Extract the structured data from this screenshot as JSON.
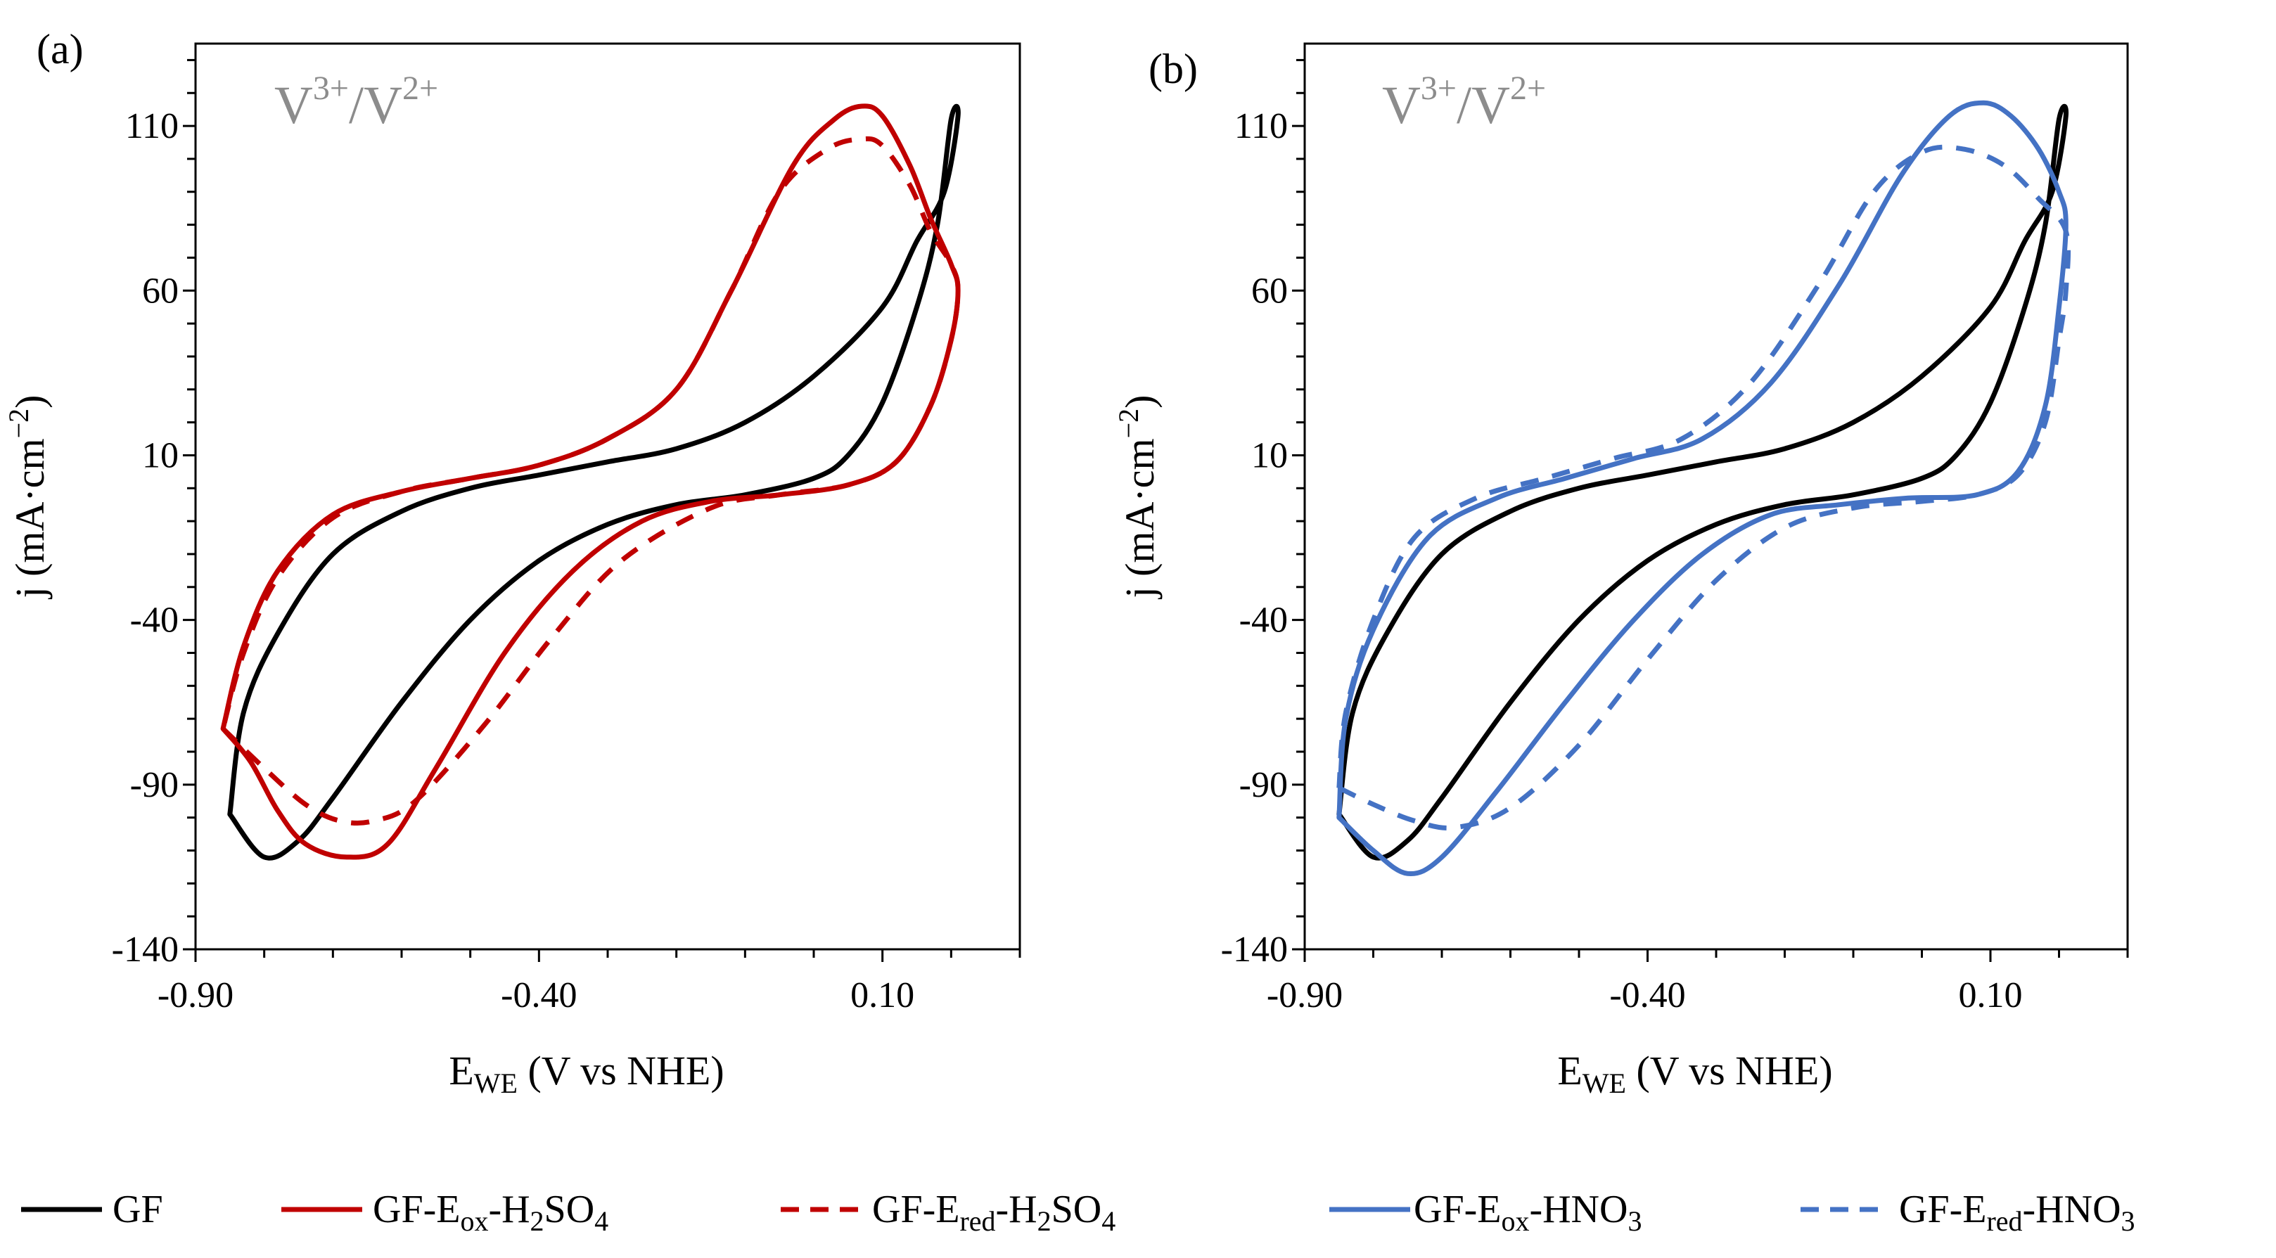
{
  "redox_label": {
    "v1": "V",
    "sup1": "3+",
    "slash": "/",
    "v2": "V",
    "sup2": "2+"
  },
  "x_axis": {
    "title_main": "E",
    "title_sub": "WE",
    "title_rest": " (V vs NHE)"
  },
  "y_axis": {
    "title_main": "j (mA·cm",
    "title_sup": "−2",
    "title_end": ")"
  },
  "legend": [
    {
      "id": "gf",
      "parts": [
        {
          "t": "GF"
        }
      ],
      "color": "#000000",
      "dash": false
    },
    {
      "id": "ox-h2so4",
      "parts": [
        {
          "t": "GF-E"
        },
        {
          "t": "ox",
          "sub": true
        },
        {
          "t": "-H"
        },
        {
          "t": "2",
          "sub": true
        },
        {
          "t": "SO"
        },
        {
          "t": "4",
          "sub": true
        }
      ],
      "color": "#c00000",
      "dash": false
    },
    {
      "id": "red-h2so4",
      "parts": [
        {
          "t": "GF-E"
        },
        {
          "t": "red",
          "sub": true
        },
        {
          "t": "-H"
        },
        {
          "t": "2",
          "sub": true
        },
        {
          "t": "SO"
        },
        {
          "t": "4",
          "sub": true
        }
      ],
      "color": "#c00000",
      "dash": true
    },
    {
      "id": "ox-hno3",
      "parts": [
        {
          "t": "GF-E"
        },
        {
          "t": "ox",
          "sub": true
        },
        {
          "t": "-HNO"
        },
        {
          "t": "3",
          "sub": true
        }
      ],
      "color": "#4472c4",
      "dash": false
    },
    {
      "id": "red-hno3",
      "parts": [
        {
          "t": "GF-E"
        },
        {
          "t": "red",
          "sub": true
        },
        {
          "t": "-HNO"
        },
        {
          "t": "3",
          "sub": true
        }
      ],
      "color": "#4472c4",
      "dash": true
    }
  ],
  "chart_data": [
    {
      "type": "line",
      "panel": "(a)",
      "xlabel": "EWE (V vs NHE)",
      "ylabel": "j (mA·cm−2)",
      "xlim": [
        -0.9,
        0.3
      ],
      "ylim": [
        -140,
        135
      ],
      "x_ticks": [
        -0.9,
        -0.4,
        0.1
      ],
      "x_tick_labels": [
        "-0.90",
        "-0.40",
        "0.10"
      ],
      "y_ticks": [
        110,
        60,
        10,
        -40,
        -90,
        -140
      ],
      "y_tick_labels": [
        "110",
        "60",
        "10",
        "-40",
        "-90",
        "-140"
      ],
      "series": [
        {
          "name": "GF",
          "color": "#000000",
          "dash": false,
          "points": [
            [
              -0.85,
              -99
            ],
            [
              -0.8,
              -112
            ],
            [
              -0.75,
              -107
            ],
            [
              -0.7,
              -94
            ],
            [
              -0.6,
              -65
            ],
            [
              -0.5,
              -40
            ],
            [
              -0.4,
              -22
            ],
            [
              -0.3,
              -11
            ],
            [
              -0.2,
              -5
            ],
            [
              -0.1,
              -2
            ],
            [
              0,
              3
            ],
            [
              0.05,
              10
            ],
            [
              0.1,
              26
            ],
            [
              0.15,
              55
            ],
            [
              0.18,
              80
            ],
            [
              0.2,
              112
            ],
            [
              0.21,
              113
            ],
            [
              0.19,
              90
            ],
            [
              0.15,
              75
            ],
            [
              0.1,
              55
            ],
            [
              0,
              34
            ],
            [
              -0.1,
              20
            ],
            [
              -0.2,
              12
            ],
            [
              -0.3,
              8
            ],
            [
              -0.4,
              4
            ],
            [
              -0.5,
              0
            ],
            [
              -0.6,
              -7
            ],
            [
              -0.7,
              -20
            ],
            [
              -0.78,
              -44
            ],
            [
              -0.83,
              -68
            ],
            [
              -0.85,
              -99
            ]
          ]
        },
        {
          "name": "GF-Eox-H2SO4",
          "color": "#c00000",
          "dash": false,
          "points": [
            [
              -0.86,
              -73
            ],
            [
              -0.82,
              -83
            ],
            [
              -0.78,
              -98
            ],
            [
              -0.74,
              -108
            ],
            [
              -0.68,
              -112
            ],
            [
              -0.62,
              -108
            ],
            [
              -0.55,
              -85
            ],
            [
              -0.45,
              -50
            ],
            [
              -0.35,
              -25
            ],
            [
              -0.25,
              -10
            ],
            [
              -0.15,
              -4
            ],
            [
              -0.05,
              -2
            ],
            [
              0.05,
              1
            ],
            [
              0.12,
              8
            ],
            [
              0.17,
              25
            ],
            [
              0.2,
              45
            ],
            [
              0.21,
              60
            ],
            [
              0.2,
              68
            ],
            [
              0.17,
              82
            ],
            [
              0.14,
              98
            ],
            [
              0.1,
              113
            ],
            [
              0.07,
              116
            ],
            [
              0.03,
              112
            ],
            [
              -0.03,
              98
            ],
            [
              -0.12,
              60
            ],
            [
              -0.2,
              30
            ],
            [
              -0.3,
              15
            ],
            [
              -0.4,
              7
            ],
            [
              -0.5,
              3
            ],
            [
              -0.6,
              -1
            ],
            [
              -0.7,
              -8
            ],
            [
              -0.78,
              -25
            ],
            [
              -0.83,
              -48
            ],
            [
              -0.86,
              -73
            ]
          ]
        },
        {
          "name": "GF-Ered-H2SO4",
          "color": "#c00000",
          "dash": true,
          "points": [
            [
              -0.86,
              -73
            ],
            [
              -0.8,
              -85
            ],
            [
              -0.74,
              -96
            ],
            [
              -0.69,
              -101
            ],
            [
              -0.64,
              -101
            ],
            [
              -0.58,
              -95
            ],
            [
              -0.48,
              -72
            ],
            [
              -0.38,
              -45
            ],
            [
              -0.28,
              -22
            ],
            [
              -0.15,
              -6
            ],
            [
              -0.05,
              -2
            ],
            [
              0.05,
              1
            ],
            [
              0.12,
              8
            ],
            [
              0.17,
              25
            ],
            [
              0.2,
              45
            ],
            [
              0.21,
              60
            ],
            [
              0.2,
              68
            ],
            [
              0.17,
              78
            ],
            [
              0.14,
              92
            ],
            [
              0.1,
              104
            ],
            [
              0.07,
              106
            ],
            [
              0.02,
              103
            ],
            [
              -0.05,
              90
            ],
            [
              -0.12,
              60
            ],
            [
              -0.2,
              30
            ],
            [
              -0.3,
              15
            ],
            [
              -0.4,
              7
            ],
            [
              -0.5,
              3
            ],
            [
              -0.6,
              -1
            ],
            [
              -0.7,
              -9
            ],
            [
              -0.78,
              -27
            ],
            [
              -0.83,
              -50
            ],
            [
              -0.86,
              -73
            ]
          ]
        }
      ]
    },
    {
      "type": "line",
      "panel": "(b)",
      "xlabel": "EWE (V vs NHE)",
      "ylabel": "j (mA·cm−2)",
      "xlim": [
        -0.9,
        0.3
      ],
      "ylim": [
        -140,
        135
      ],
      "x_ticks": [
        -0.9,
        -0.4,
        0.1
      ],
      "x_tick_labels": [
        "-0.90",
        "-0.40",
        "0.10"
      ],
      "y_ticks": [
        110,
        60,
        10,
        -40,
        -90,
        -140
      ],
      "y_tick_labels": [
        "110",
        "60",
        "10",
        "-40",
        "-90",
        "-140"
      ],
      "series": [
        {
          "name": "GF",
          "color": "#000000",
          "dash": false,
          "points": [
            [
              -0.85,
              -99
            ],
            [
              -0.8,
              -112
            ],
            [
              -0.75,
              -107
            ],
            [
              -0.7,
              -94
            ],
            [
              -0.6,
              -65
            ],
            [
              -0.5,
              -40
            ],
            [
              -0.4,
              -22
            ],
            [
              -0.3,
              -11
            ],
            [
              -0.2,
              -5
            ],
            [
              -0.1,
              -2
            ],
            [
              0,
              3
            ],
            [
              0.05,
              10
            ],
            [
              0.1,
              26
            ],
            [
              0.15,
              55
            ],
            [
              0.18,
              80
            ],
            [
              0.2,
              112
            ],
            [
              0.21,
              113
            ],
            [
              0.19,
              90
            ],
            [
              0.15,
              75
            ],
            [
              0.1,
              55
            ],
            [
              0,
              34
            ],
            [
              -0.1,
              20
            ],
            [
              -0.2,
              12
            ],
            [
              -0.3,
              8
            ],
            [
              -0.4,
              4
            ],
            [
              -0.5,
              0
            ],
            [
              -0.6,
              -7
            ],
            [
              -0.7,
              -20
            ],
            [
              -0.78,
              -44
            ],
            [
              -0.83,
              -68
            ],
            [
              -0.85,
              -99
            ]
          ]
        },
        {
          "name": "GF-Eox-HNO3",
          "color": "#4472c4",
          "dash": false,
          "points": [
            [
              -0.85,
              -100
            ],
            [
              -0.8,
              -110
            ],
            [
              -0.75,
              -117
            ],
            [
              -0.7,
              -112
            ],
            [
              -0.62,
              -92
            ],
            [
              -0.52,
              -65
            ],
            [
              -0.42,
              -40
            ],
            [
              -0.32,
              -20
            ],
            [
              -0.22,
              -8
            ],
            [
              -0.12,
              -5
            ],
            [
              -0.02,
              -3
            ],
            [
              0.08,
              -2
            ],
            [
              0.14,
              5
            ],
            [
              0.18,
              25
            ],
            [
              0.2,
              55
            ],
            [
              0.21,
              80
            ],
            [
              0.2,
              90
            ],
            [
              0.17,
              103
            ],
            [
              0.13,
              113
            ],
            [
              0.09,
              117
            ],
            [
              0.04,
              113
            ],
            [
              -0.03,
              95
            ],
            [
              -0.12,
              62
            ],
            [
              -0.22,
              32
            ],
            [
              -0.32,
              15
            ],
            [
              -0.42,
              9
            ],
            [
              -0.52,
              3
            ],
            [
              -0.62,
              -3
            ],
            [
              -0.72,
              -15
            ],
            [
              -0.8,
              -43
            ],
            [
              -0.84,
              -70
            ],
            [
              -0.85,
              -100
            ]
          ]
        },
        {
          "name": "GF-Ered-HNO3",
          "color": "#4472c4",
          "dash": true,
          "points": [
            [
              -0.85,
              -91
            ],
            [
              -0.8,
              -96
            ],
            [
              -0.74,
              -101
            ],
            [
              -0.68,
              -103
            ],
            [
              -0.6,
              -97
            ],
            [
              -0.5,
              -78
            ],
            [
              -0.4,
              -52
            ],
            [
              -0.3,
              -28
            ],
            [
              -0.2,
              -12
            ],
            [
              -0.1,
              -6
            ],
            [
              0,
              -4
            ],
            [
              0.08,
              -2
            ],
            [
              0.14,
              4
            ],
            [
              0.18,
              20
            ],
            [
              0.2,
              45
            ],
            [
              0.21,
              60
            ],
            [
              0.21,
              78
            ],
            [
              0.17,
              88
            ],
            [
              0.12,
              98
            ],
            [
              0.06,
              103
            ],
            [
              0,
              102
            ],
            [
              -0.07,
              90
            ],
            [
              -0.15,
              62
            ],
            [
              -0.25,
              32
            ],
            [
              -0.35,
              15
            ],
            [
              -0.45,
              9
            ],
            [
              -0.55,
              3
            ],
            [
              -0.65,
              -3
            ],
            [
              -0.74,
              -15
            ],
            [
              -0.8,
              -40
            ],
            [
              -0.84,
              -68
            ],
            [
              -0.85,
              -91
            ]
          ]
        }
      ]
    }
  ]
}
